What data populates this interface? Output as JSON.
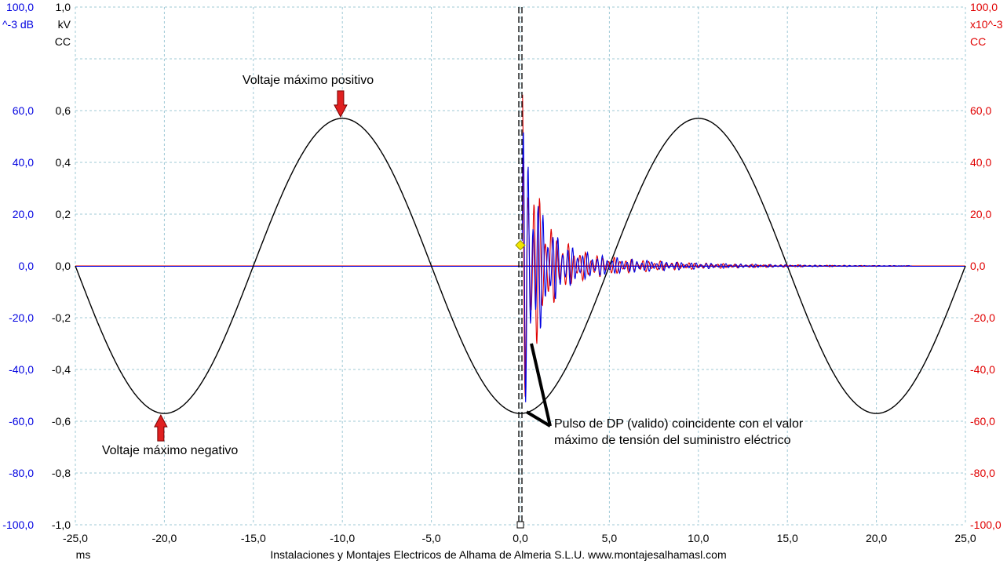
{
  "chart_data": {
    "type": "line",
    "title": "",
    "xlabel": "ms",
    "x_range": [
      -25,
      25
    ],
    "x_ticks": [
      "-25,0",
      "-20,0",
      "-15,0",
      "-10,0",
      "-5,0",
      "0,0",
      "5,0",
      "10,0",
      "15,0",
      "20,0",
      "25,0"
    ],
    "grid": true,
    "left_axis_blue": {
      "header": [
        "100,0",
        "^-3 dB"
      ],
      "range": [
        -100,
        100
      ],
      "ticks": [
        "-100,0",
        "-80,0",
        "-60,0",
        "-40,0",
        "-20,0",
        "0,0",
        "20,0",
        "40,0",
        "60,0"
      ]
    },
    "left_axis_black": {
      "header": [
        "1,0",
        "kV",
        "CC"
      ],
      "range": [
        -1,
        1
      ],
      "ticks": [
        "-1,0",
        "-0,8",
        "-0,6",
        "-0,4",
        "-0,2",
        "0,0",
        "0,2",
        "0,4",
        "0,6"
      ]
    },
    "right_axis_red": {
      "header": [
        "100,0",
        "x10^-3",
        "CC"
      ],
      "range": [
        -100,
        100
      ],
      "ticks": [
        "-100,0",
        "-80,0",
        "-60,0",
        "-40,0",
        "-20,0",
        "0,0",
        "20,0",
        "40,0",
        "60,0"
      ]
    },
    "series": [
      {
        "color": "#000000",
        "kind": "sine",
        "amplitude_kV": 0.57,
        "period_ms": 20,
        "peak_ms": -10
      },
      {
        "color": "#0000e0",
        "kind": "damped-pulse",
        "peak": 55,
        "start_ms": 0.1
      },
      {
        "color": "#e00000",
        "kind": "damped-pulse",
        "peak": 60,
        "start_ms": 0.1
      }
    ],
    "cursor_ms": 0.0,
    "annotations": [
      {
        "text": "Voltaje máximo positivo",
        "x_ms": -10.1,
        "y_kV": 0.57
      },
      {
        "text": "Voltaje máximo negativo",
        "x_ms": -20.2,
        "y_kV": -0.57
      },
      {
        "text_lines": [
          "Pulso de DP (valido) coincidente con el valor",
          "máximo de tensión del suministro eléctrico"
        ],
        "x_ms": 0.0,
        "y_kV": -0.57
      }
    ]
  },
  "footer": "Instalaciones y Montajes Electricos de Alhama de Almeria S.L.U.   www.montajesalhamasl.com",
  "colors": {
    "blue": "#0000e0",
    "red": "#e00000",
    "black": "#000000",
    "grid": "#9fc9d6",
    "arrow": "#e02020"
  }
}
